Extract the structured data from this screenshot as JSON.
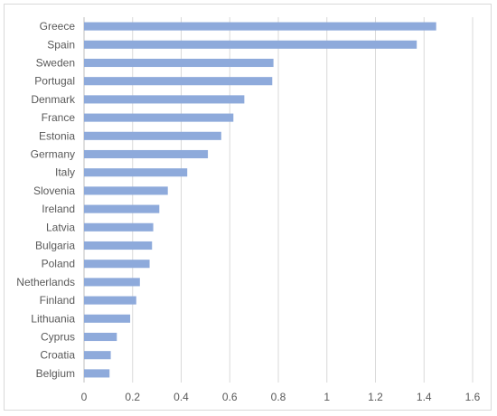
{
  "chart_data": {
    "type": "bar",
    "orientation": "horizontal",
    "categories": [
      "Greece",
      "Spain",
      "Sweden",
      "Portugal",
      "Denmark",
      "France",
      "Estonia",
      "Germany",
      "Italy",
      "Slovenia",
      "Ireland",
      "Latvia",
      "Bulgaria",
      "Poland",
      "Netherlands",
      "Finland",
      "Lithuania",
      "Cyprus",
      "Croatia",
      "Belgium"
    ],
    "values": [
      1.45,
      1.37,
      0.78,
      0.775,
      0.66,
      0.615,
      0.565,
      0.51,
      0.425,
      0.345,
      0.31,
      0.285,
      0.28,
      0.27,
      0.23,
      0.215,
      0.19,
      0.135,
      0.11,
      0.105
    ],
    "xlim": [
      0,
      1.6
    ],
    "xticks": [
      "0",
      "0.2",
      "0.4",
      "0.6",
      "0.8",
      "1",
      "1.2",
      "1.4",
      "1.6"
    ],
    "grid": "vertical",
    "legend": "none",
    "bar_color": "#8eaadb"
  }
}
